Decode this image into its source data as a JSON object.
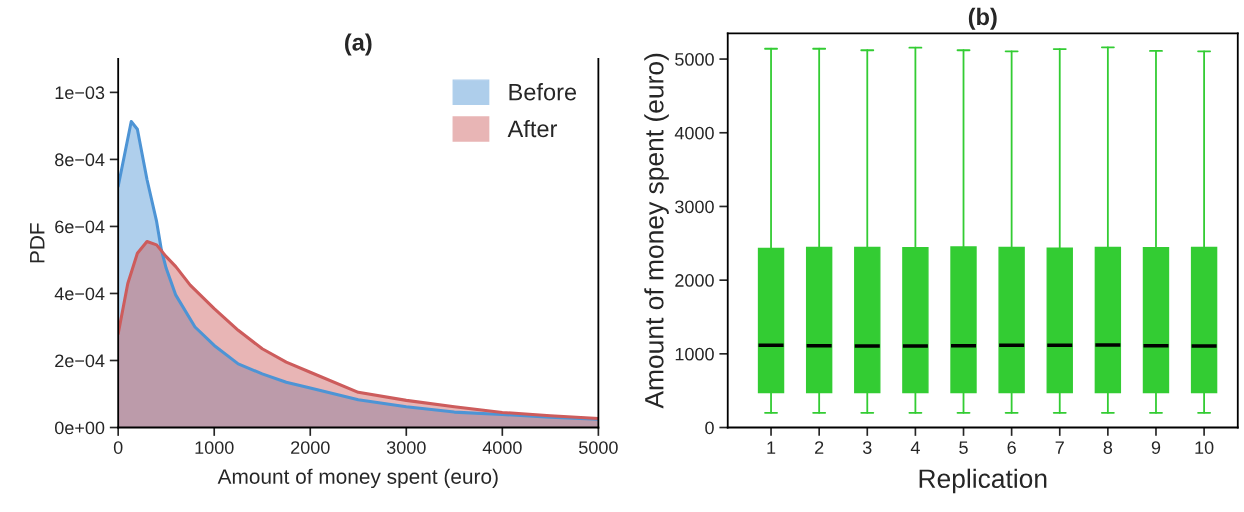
{
  "chart_data": [
    {
      "type": "area",
      "title": "(a)",
      "xlabel": "Amount of money spent (euro)",
      "ylabel": "PDF",
      "xlim": [
        0,
        5000
      ],
      "xticks": [
        0,
        1000,
        2000,
        3000,
        4000,
        5000
      ],
      "ylim": [
        0,
        0.0011
      ],
      "yticks": [
        {
          "value": 0,
          "label": "0e+00"
        },
        {
          "value": 0.0002,
          "label": "2e−04"
        },
        {
          "value": 0.0004,
          "label": "4e−04"
        },
        {
          "value": 0.0006,
          "label": "6e−04"
        },
        {
          "value": 0.0008,
          "label": "8e−04"
        },
        {
          "value": 0.001,
          "label": "1e−03"
        }
      ],
      "legend": "top right",
      "grid": false,
      "series": [
        {
          "name": "Before",
          "color": "#4d94d5",
          "x": [
            0,
            136,
            200,
            300,
            400,
            450,
            500,
            600,
            800,
            1000,
            1250,
            1500,
            1750,
            2000,
            2500,
            3000,
            3500,
            4000,
            4500,
            5000
          ],
          "values": [
            0.00072,
            0.000913,
            0.00089,
            0.00074,
            0.000615,
            0.00053,
            0.000475,
            0.000395,
            0.0003,
            0.000245,
            0.00019,
            0.00016,
            0.000135,
            0.000118,
            8.3e-05,
            6.2e-05,
            4.6e-05,
            3.9e-05,
            3.1e-05,
            2.5e-05
          ]
        },
        {
          "name": "After",
          "color": "#cd5c5c",
          "x": [
            0,
            100,
            200,
            300,
            400,
            500,
            600,
            750,
            1000,
            1250,
            1500,
            1750,
            2000,
            2500,
            3000,
            3500,
            4000,
            4500,
            5000
          ],
          "values": [
            0.00028,
            0.00043,
            0.00052,
            0.000555,
            0.000545,
            0.00051,
            0.00048,
            0.000425,
            0.000355,
            0.00029,
            0.000235,
            0.000195,
            0.000165,
            0.000105,
            8.1e-05,
            6.2e-05,
            4.5e-05,
            3.5e-05,
            2.7e-05
          ]
        }
      ]
    },
    {
      "type": "box",
      "title": "(b)",
      "xlabel": "Replication",
      "ylabel": "Amount of money spent (euro)",
      "ylim": [
        0,
        5350
      ],
      "yticks": [
        0,
        1000,
        2000,
        3000,
        4000,
        5000
      ],
      "grid": false,
      "legend": false,
      "categories": [
        "1",
        "2",
        "3",
        "4",
        "5",
        "6",
        "7",
        "8",
        "9",
        "10"
      ],
      "series": [
        {
          "color": "#33cc33",
          "boxes": [
            {
              "low": 200,
              "q1": 475,
              "median": 1115,
              "q3": 2430,
              "high": 5140
            },
            {
              "low": 200,
              "q1": 475,
              "median": 1110,
              "q3": 2445,
              "high": 5140
            },
            {
              "low": 200,
              "q1": 475,
              "median": 1105,
              "q3": 2445,
              "high": 5120
            },
            {
              "low": 200,
              "q1": 475,
              "median": 1105,
              "q3": 2440,
              "high": 5155
            },
            {
              "low": 200,
              "q1": 475,
              "median": 1110,
              "q3": 2450,
              "high": 5120
            },
            {
              "low": 200,
              "q1": 475,
              "median": 1115,
              "q3": 2445,
              "high": 5105
            },
            {
              "low": 200,
              "q1": 475,
              "median": 1115,
              "q3": 2435,
              "high": 5135
            },
            {
              "low": 200,
              "q1": 475,
              "median": 1120,
              "q3": 2445,
              "high": 5160
            },
            {
              "low": 200,
              "q1": 475,
              "median": 1110,
              "q3": 2440,
              "high": 5110
            },
            {
              "low": 200,
              "q1": 475,
              "median": 1105,
              "q3": 2445,
              "high": 5105
            }
          ]
        }
      ]
    }
  ]
}
